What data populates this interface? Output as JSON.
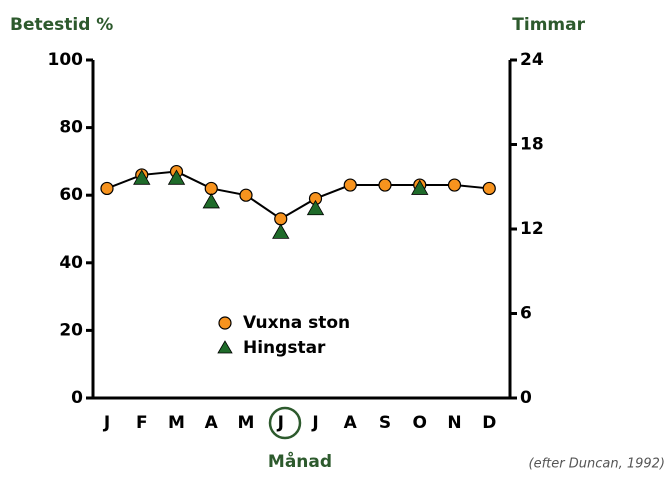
{
  "chart_data": {
    "type": "line",
    "y_label": "Betestid %",
    "y2_label": "Timmar",
    "x_label": "Månad",
    "source": "(efter Duncan, 1992)",
    "categories": [
      "J",
      "F",
      "M",
      "A",
      "M",
      "J",
      "J",
      "A",
      "S",
      "O",
      "N",
      "D"
    ],
    "series": [
      {
        "name": "Vuxna ston",
        "color": "#f7931e",
        "line_color": "#000000",
        "marker": "circle",
        "values": [
          62,
          66,
          67,
          62,
          60,
          53,
          59,
          63,
          63,
          63,
          63,
          62
        ]
      },
      {
        "name": "Hingstar",
        "color": "#1f6b2a",
        "marker": "triangle",
        "values": [
          null,
          65,
          65,
          58,
          null,
          49,
          56,
          null,
          null,
          62,
          null,
          null
        ]
      }
    ],
    "ylim": [
      0,
      100
    ],
    "yticks": [
      0,
      20,
      40,
      60,
      80,
      100
    ],
    "y2lim": [
      0,
      24
    ],
    "y2ticks": [
      0,
      6,
      12,
      18,
      24
    ]
  }
}
